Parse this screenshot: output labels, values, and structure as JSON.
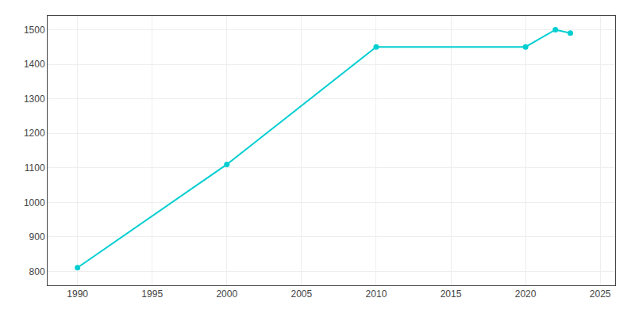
{
  "chart_data": {
    "type": "line",
    "x": [
      1990,
      2000,
      2010,
      2020,
      2022,
      2023
    ],
    "values": [
      811,
      1110,
      1450,
      1450,
      1500,
      1490
    ],
    "color": "#00CED1",
    "marker": "circle",
    "xlim": [
      1988,
      2026
    ],
    "ylim": [
      760,
      1540
    ],
    "xticks": [
      1990,
      1995,
      2000,
      2005,
      2010,
      2015,
      2020,
      2025
    ],
    "yticks": [
      800,
      900,
      1000,
      1100,
      1200,
      1300,
      1400,
      1500
    ],
    "grid": true
  }
}
